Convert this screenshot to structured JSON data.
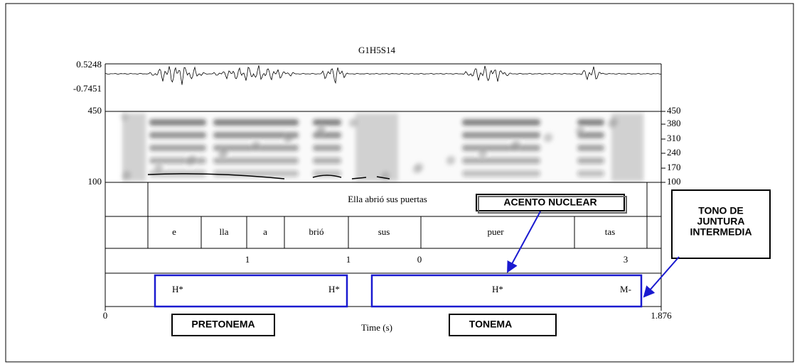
{
  "title": "G1H5S14",
  "waveform_labels": [
    "0.5248",
    "-0.7451"
  ],
  "spectrogram_labels": [
    "450",
    "100"
  ],
  "pitch_labels": [
    "450",
    "380",
    "310",
    "240",
    "170",
    "100"
  ],
  "tiers": {
    "sentence": "Ella abrió sus puertas",
    "syllables": [
      "e",
      "lla",
      "a",
      "brió",
      "sus",
      "puer",
      "tas"
    ],
    "breaks": [
      "1",
      "1",
      "0",
      "3"
    ],
    "tones": [
      "H*",
      "H*",
      "H*",
      "M-"
    ]
  },
  "time_axis": {
    "start": "0",
    "end": "1.876",
    "label": "Time (s)"
  },
  "annotations": {
    "nuclear": "ACENTO NUCLEAR",
    "juntura": [
      "TONO DE",
      "JUNTURA",
      "INTERMEDIA"
    ],
    "pretonema": "PRETONEMA",
    "tonema": "TONEMA"
  }
}
